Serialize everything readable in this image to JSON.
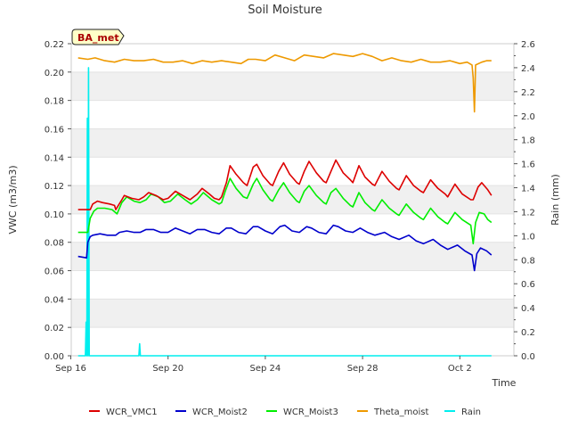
{
  "chart_data": {
    "type": "line",
    "title": "Soil Moisture",
    "xlabel": "Time",
    "ylabel_left": "VWC (m3/m3)",
    "ylabel_right": "Rain (mm)",
    "site_badge": "BA_met",
    "x_range_days": [
      0,
      17.8
    ],
    "x_ticks": [
      {
        "day": 0,
        "label": "Sep 16"
      },
      {
        "day": 4,
        "label": "Sep 20"
      },
      {
        "day": 8,
        "label": "Sep 24"
      },
      {
        "day": 12,
        "label": "Sep 28"
      },
      {
        "day": 16,
        "label": "Oct 2"
      }
    ],
    "ylim_left": [
      0.0,
      0.22
    ],
    "y_ticks_left": [
      "0.00",
      "0.02",
      "0.04",
      "0.06",
      "0.08",
      "0.10",
      "0.12",
      "0.14",
      "0.16",
      "0.18",
      "0.20",
      "0.22"
    ],
    "ylim_right": [
      0.0,
      2.6
    ],
    "y_ticks_right": [
      "0.0",
      "0.2",
      "0.4",
      "0.6",
      "0.8",
      "1.0",
      "1.2",
      "1.4",
      "1.6",
      "1.8",
      "2.0",
      "2.2",
      "2.4",
      "2.6"
    ],
    "legend_position": "bottom",
    "series": [
      {
        "name": "WCR_VMC1",
        "axis": "left",
        "color": "#dd0000",
        "points": [
          [
            0.3,
            0.103
          ],
          [
            0.8,
            0.103
          ],
          [
            0.9,
            0.107
          ],
          [
            1.1,
            0.109
          ],
          [
            1.3,
            0.108
          ],
          [
            1.6,
            0.107
          ],
          [
            1.8,
            0.106
          ],
          [
            1.85,
            0.103
          ],
          [
            2.1,
            0.11
          ],
          [
            2.2,
            0.113
          ],
          [
            2.5,
            0.111
          ],
          [
            2.8,
            0.11
          ],
          [
            3.0,
            0.112
          ],
          [
            3.2,
            0.115
          ],
          [
            3.5,
            0.113
          ],
          [
            3.8,
            0.11
          ],
          [
            4.0,
            0.111
          ],
          [
            4.3,
            0.116
          ],
          [
            4.6,
            0.113
          ],
          [
            4.9,
            0.11
          ],
          [
            5.2,
            0.114
          ],
          [
            5.4,
            0.118
          ],
          [
            5.7,
            0.114
          ],
          [
            5.9,
            0.111
          ],
          [
            6.1,
            0.11
          ],
          [
            6.2,
            0.112
          ],
          [
            6.4,
            0.122
          ],
          [
            6.55,
            0.134
          ],
          [
            6.8,
            0.128
          ],
          [
            7.1,
            0.122
          ],
          [
            7.25,
            0.12
          ],
          [
            7.5,
            0.133
          ],
          [
            7.65,
            0.135
          ],
          [
            7.9,
            0.127
          ],
          [
            8.2,
            0.121
          ],
          [
            8.3,
            0.12
          ],
          [
            8.55,
            0.13
          ],
          [
            8.75,
            0.136
          ],
          [
            9.0,
            0.128
          ],
          [
            9.3,
            0.122
          ],
          [
            9.4,
            0.121
          ],
          [
            9.6,
            0.13
          ],
          [
            9.8,
            0.137
          ],
          [
            10.1,
            0.129
          ],
          [
            10.4,
            0.123
          ],
          [
            10.5,
            0.122
          ],
          [
            10.7,
            0.13
          ],
          [
            10.9,
            0.138
          ],
          [
            11.2,
            0.129
          ],
          [
            11.5,
            0.124
          ],
          [
            11.6,
            0.122
          ],
          [
            11.85,
            0.134
          ],
          [
            12.1,
            0.126
          ],
          [
            12.4,
            0.121
          ],
          [
            12.5,
            0.12
          ],
          [
            12.8,
            0.13
          ],
          [
            13.1,
            0.123
          ],
          [
            13.4,
            0.118
          ],
          [
            13.5,
            0.117
          ],
          [
            13.8,
            0.127
          ],
          [
            14.1,
            0.12
          ],
          [
            14.4,
            0.116
          ],
          [
            14.5,
            0.115
          ],
          [
            14.8,
            0.124
          ],
          [
            15.1,
            0.118
          ],
          [
            15.4,
            0.114
          ],
          [
            15.5,
            0.112
          ],
          [
            15.8,
            0.121
          ],
          [
            16.1,
            0.114
          ],
          [
            16.45,
            0.11
          ],
          [
            16.55,
            0.11
          ],
          [
            16.75,
            0.119
          ],
          [
            16.9,
            0.122
          ],
          [
            17.15,
            0.117
          ],
          [
            17.3,
            0.113
          ]
        ]
      },
      {
        "name": "WCR_Moist2",
        "axis": "left",
        "color": "#0000cc",
        "points": [
          [
            0.3,
            0.07
          ],
          [
            0.65,
            0.069
          ],
          [
            0.7,
            0.08
          ],
          [
            0.8,
            0.084
          ],
          [
            0.9,
            0.085
          ],
          [
            1.2,
            0.086
          ],
          [
            1.5,
            0.085
          ],
          [
            1.85,
            0.085
          ],
          [
            2.0,
            0.087
          ],
          [
            2.3,
            0.088
          ],
          [
            2.6,
            0.087
          ],
          [
            2.85,
            0.087
          ],
          [
            3.1,
            0.089
          ],
          [
            3.4,
            0.089
          ],
          [
            3.7,
            0.087
          ],
          [
            4.0,
            0.087
          ],
          [
            4.3,
            0.09
          ],
          [
            4.6,
            0.088
          ],
          [
            4.9,
            0.086
          ],
          [
            5.2,
            0.089
          ],
          [
            5.5,
            0.089
          ],
          [
            5.8,
            0.087
          ],
          [
            6.1,
            0.086
          ],
          [
            6.4,
            0.09
          ],
          [
            6.6,
            0.09
          ],
          [
            6.9,
            0.087
          ],
          [
            7.2,
            0.086
          ],
          [
            7.5,
            0.091
          ],
          [
            7.7,
            0.091
          ],
          [
            8.0,
            0.088
          ],
          [
            8.3,
            0.086
          ],
          [
            8.6,
            0.091
          ],
          [
            8.8,
            0.092
          ],
          [
            9.1,
            0.088
          ],
          [
            9.4,
            0.087
          ],
          [
            9.7,
            0.091
          ],
          [
            9.9,
            0.09
          ],
          [
            10.2,
            0.087
          ],
          [
            10.5,
            0.086
          ],
          [
            10.8,
            0.092
          ],
          [
            11.0,
            0.091
          ],
          [
            11.3,
            0.088
          ],
          [
            11.6,
            0.087
          ],
          [
            11.9,
            0.09
          ],
          [
            12.2,
            0.087
          ],
          [
            12.5,
            0.085
          ],
          [
            12.9,
            0.087
          ],
          [
            13.2,
            0.084
          ],
          [
            13.5,
            0.082
          ],
          [
            13.9,
            0.085
          ],
          [
            14.2,
            0.081
          ],
          [
            14.5,
            0.079
          ],
          [
            14.9,
            0.082
          ],
          [
            15.2,
            0.078
          ],
          [
            15.5,
            0.075
          ],
          [
            15.9,
            0.078
          ],
          [
            16.2,
            0.074
          ],
          [
            16.5,
            0.071
          ],
          [
            16.6,
            0.06
          ],
          [
            16.7,
            0.072
          ],
          [
            16.85,
            0.076
          ],
          [
            17.1,
            0.074
          ],
          [
            17.3,
            0.071
          ]
        ]
      },
      {
        "name": "WCR_Moist3",
        "axis": "left",
        "color": "#00ee00",
        "points": [
          [
            0.3,
            0.087
          ],
          [
            0.7,
            0.087
          ],
          [
            0.8,
            0.097
          ],
          [
            0.95,
            0.102
          ],
          [
            1.1,
            0.104
          ],
          [
            1.4,
            0.104
          ],
          [
            1.7,
            0.103
          ],
          [
            1.9,
            0.1
          ],
          [
            2.1,
            0.108
          ],
          [
            2.3,
            0.112
          ],
          [
            2.6,
            0.109
          ],
          [
            2.85,
            0.108
          ],
          [
            3.1,
            0.11
          ],
          [
            3.3,
            0.114
          ],
          [
            3.6,
            0.112
          ],
          [
            3.85,
            0.108
          ],
          [
            4.1,
            0.109
          ],
          [
            4.4,
            0.114
          ],
          [
            4.7,
            0.11
          ],
          [
            4.95,
            0.107
          ],
          [
            5.2,
            0.11
          ],
          [
            5.45,
            0.115
          ],
          [
            5.8,
            0.11
          ],
          [
            6.1,
            0.107
          ],
          [
            6.2,
            0.108
          ],
          [
            6.35,
            0.116
          ],
          [
            6.55,
            0.125
          ],
          [
            6.8,
            0.118
          ],
          [
            7.1,
            0.112
          ],
          [
            7.25,
            0.111
          ],
          [
            7.5,
            0.121
          ],
          [
            7.65,
            0.125
          ],
          [
            7.9,
            0.117
          ],
          [
            8.2,
            0.11
          ],
          [
            8.3,
            0.109
          ],
          [
            8.55,
            0.117
          ],
          [
            8.75,
            0.122
          ],
          [
            9.0,
            0.115
          ],
          [
            9.3,
            0.109
          ],
          [
            9.4,
            0.108
          ],
          [
            9.6,
            0.116
          ],
          [
            9.8,
            0.12
          ],
          [
            10.1,
            0.113
          ],
          [
            10.4,
            0.108
          ],
          [
            10.5,
            0.107
          ],
          [
            10.7,
            0.115
          ],
          [
            10.9,
            0.118
          ],
          [
            11.2,
            0.111
          ],
          [
            11.5,
            0.106
          ],
          [
            11.6,
            0.105
          ],
          [
            11.85,
            0.115
          ],
          [
            12.1,
            0.108
          ],
          [
            12.4,
            0.103
          ],
          [
            12.5,
            0.102
          ],
          [
            12.8,
            0.11
          ],
          [
            13.1,
            0.104
          ],
          [
            13.4,
            0.1
          ],
          [
            13.5,
            0.099
          ],
          [
            13.8,
            0.107
          ],
          [
            14.1,
            0.101
          ],
          [
            14.4,
            0.097
          ],
          [
            14.5,
            0.096
          ],
          [
            14.8,
            0.104
          ],
          [
            15.1,
            0.098
          ],
          [
            15.4,
            0.094
          ],
          [
            15.5,
            0.093
          ],
          [
            15.8,
            0.101
          ],
          [
            16.1,
            0.096
          ],
          [
            16.45,
            0.092
          ],
          [
            16.55,
            0.079
          ],
          [
            16.65,
            0.094
          ],
          [
            16.8,
            0.101
          ],
          [
            17.0,
            0.1
          ],
          [
            17.15,
            0.096
          ],
          [
            17.3,
            0.094
          ]
        ]
      },
      {
        "name": "Theta_moist",
        "axis": "left",
        "color": "#ee9900",
        "points": [
          [
            0.3,
            0.21
          ],
          [
            0.7,
            0.209
          ],
          [
            1.0,
            0.21
          ],
          [
            1.4,
            0.208
          ],
          [
            1.8,
            0.207
          ],
          [
            2.2,
            0.209
          ],
          [
            2.6,
            0.208
          ],
          [
            3.0,
            0.208
          ],
          [
            3.4,
            0.209
          ],
          [
            3.8,
            0.207
          ],
          [
            4.2,
            0.207
          ],
          [
            4.6,
            0.208
          ],
          [
            5.0,
            0.206
          ],
          [
            5.4,
            0.208
          ],
          [
            5.8,
            0.207
          ],
          [
            6.2,
            0.208
          ],
          [
            6.6,
            0.207
          ],
          [
            7.0,
            0.206
          ],
          [
            7.3,
            0.209
          ],
          [
            7.6,
            0.209
          ],
          [
            8.0,
            0.208
          ],
          [
            8.4,
            0.212
          ],
          [
            8.8,
            0.21
          ],
          [
            9.2,
            0.208
          ],
          [
            9.6,
            0.212
          ],
          [
            10.0,
            0.211
          ],
          [
            10.4,
            0.21
          ],
          [
            10.8,
            0.213
          ],
          [
            11.2,
            0.212
          ],
          [
            11.6,
            0.211
          ],
          [
            12.0,
            0.213
          ],
          [
            12.4,
            0.211
          ],
          [
            12.8,
            0.208
          ],
          [
            13.2,
            0.21
          ],
          [
            13.6,
            0.208
          ],
          [
            14.0,
            0.207
          ],
          [
            14.4,
            0.209
          ],
          [
            14.8,
            0.207
          ],
          [
            15.2,
            0.207
          ],
          [
            15.6,
            0.208
          ],
          [
            16.0,
            0.206
          ],
          [
            16.3,
            0.207
          ],
          [
            16.5,
            0.205
          ],
          [
            16.55,
            0.196
          ],
          [
            16.6,
            0.172
          ],
          [
            16.65,
            0.205
          ],
          [
            16.9,
            0.207
          ],
          [
            17.1,
            0.208
          ],
          [
            17.3,
            0.208
          ]
        ]
      },
      {
        "name": "Rain",
        "axis": "right",
        "color": "#00eeee",
        "points": [
          [
            0.3,
            0.0
          ],
          [
            0.6,
            0.0
          ],
          [
            0.63,
            0.28
          ],
          [
            0.66,
            0.0
          ],
          [
            0.68,
            1.98
          ],
          [
            0.71,
            0.0
          ],
          [
            0.73,
            2.4
          ],
          [
            0.76,
            0.0
          ],
          [
            1.0,
            0.0
          ],
          [
            2.8,
            0.0
          ],
          [
            2.83,
            0.1
          ],
          [
            2.86,
            0.0
          ],
          [
            5.0,
            0.0
          ],
          [
            10.0,
            0.0
          ],
          [
            17.3,
            0.0
          ]
        ]
      }
    ]
  }
}
